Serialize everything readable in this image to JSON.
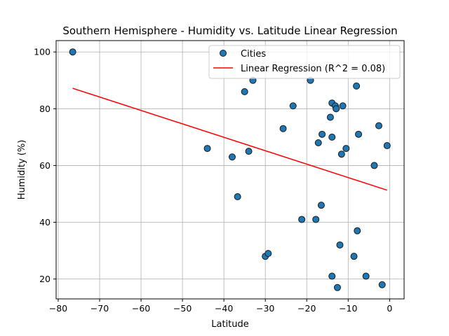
{
  "chart_data": {
    "type": "scatter",
    "title": "Southern Hemisphere - Humidity vs. Latitude Linear Regression",
    "xlabel": "Latitude",
    "ylabel": "Humidity (%)",
    "xlim": [
      -80.5,
      3.5
    ],
    "ylim": [
      13,
      104
    ],
    "xticks": [
      -80,
      -70,
      -60,
      -50,
      -40,
      -30,
      -20,
      -10,
      0
    ],
    "yticks": [
      20,
      40,
      60,
      80,
      100
    ],
    "grid": true,
    "legend_position": "top-right",
    "series": [
      {
        "name": "Cities",
        "kind": "scatter",
        "color": "#1f77b4",
        "points": [
          {
            "x": -76.5,
            "y": 100
          },
          {
            "x": -44,
            "y": 66
          },
          {
            "x": -38,
            "y": 63
          },
          {
            "x": -36.7,
            "y": 49
          },
          {
            "x": -35,
            "y": 86
          },
          {
            "x": -34,
            "y": 65
          },
          {
            "x": -33,
            "y": 90
          },
          {
            "x": -30,
            "y": 28
          },
          {
            "x": -29.3,
            "y": 29
          },
          {
            "x": -25.7,
            "y": 73
          },
          {
            "x": -23.3,
            "y": 81
          },
          {
            "x": -21.2,
            "y": 41
          },
          {
            "x": -19.1,
            "y": 90
          },
          {
            "x": -17.8,
            "y": 41
          },
          {
            "x": -17.2,
            "y": 68
          },
          {
            "x": -16.5,
            "y": 46
          },
          {
            "x": -16.3,
            "y": 71
          },
          {
            "x": -14.3,
            "y": 77
          },
          {
            "x": -13.9,
            "y": 82
          },
          {
            "x": -13.9,
            "y": 70
          },
          {
            "x": -13.9,
            "y": 21
          },
          {
            "x": -13.1,
            "y": 81
          },
          {
            "x": -12.9,
            "y": 80
          },
          {
            "x": -12.6,
            "y": 17
          },
          {
            "x": -12.0,
            "y": 32
          },
          {
            "x": -11.6,
            "y": 64
          },
          {
            "x": -11.3,
            "y": 81
          },
          {
            "x": -10.5,
            "y": 66
          },
          {
            "x": -8.6,
            "y": 28
          },
          {
            "x": -8.0,
            "y": 88
          },
          {
            "x": -7.8,
            "y": 37
          },
          {
            "x": -7.5,
            "y": 71
          },
          {
            "x": -5.7,
            "y": 21
          },
          {
            "x": -3.7,
            "y": 60
          },
          {
            "x": -2.6,
            "y": 74
          },
          {
            "x": -1.8,
            "y": 18
          },
          {
            "x": -0.6,
            "y": 67
          }
        ]
      },
      {
        "name": "Linear Regression (R^2 = 0.08)",
        "kind": "line",
        "color": "#ff0000",
        "points": [
          {
            "x": -76.5,
            "y": 87.2
          },
          {
            "x": -0.6,
            "y": 51.3
          }
        ]
      }
    ]
  }
}
